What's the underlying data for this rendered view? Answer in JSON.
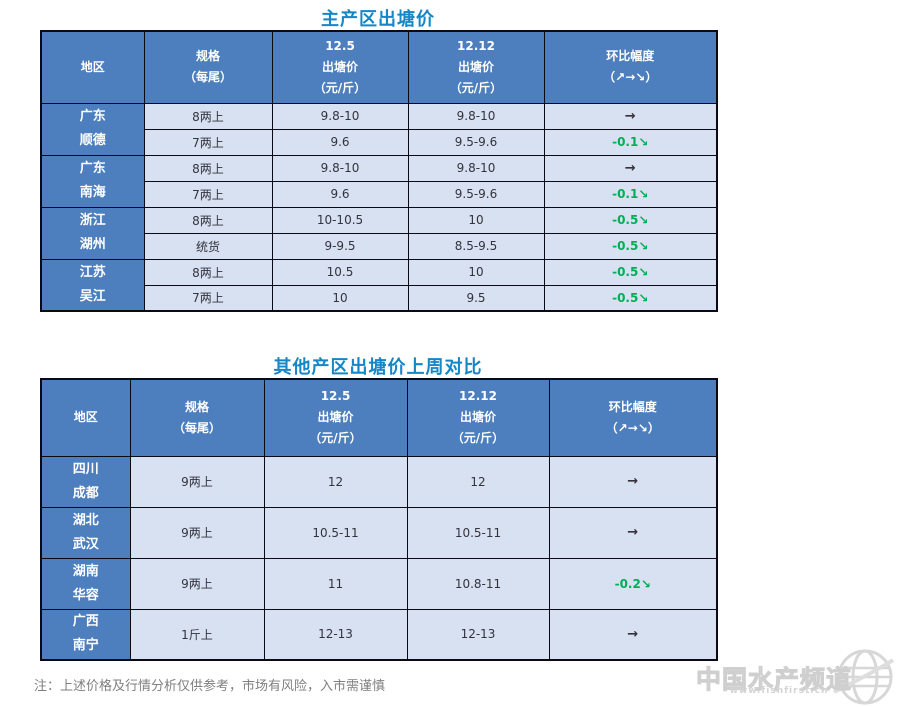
{
  "colors": {
    "header_bg": "#4d7ebd",
    "row_bg": "#d7e1f1",
    "title_color": "#1587c6",
    "down_color": "#00ae56",
    "flat_color": "#37303a",
    "note_color": "#7f7f7f",
    "watermark_color": "#d9d9d9"
  },
  "note": "注：上述价格及行情分析仅供参考，市场有风险，入市需谨慎",
  "watermark": {
    "brand": "中国水产频道",
    "url": "www.fishfirst.cn",
    "globe_icon": "globe-icon"
  },
  "tables": [
    {
      "title": "主产区出塘价",
      "columns": [
        {
          "key": "region",
          "lines": [
            "地区"
          ]
        },
        {
          "key": "spec",
          "lines": [
            "规格",
            "（每尾）"
          ]
        },
        {
          "key": "p1",
          "lines": [
            "12.5",
            "出塘价",
            "（元/斤）"
          ]
        },
        {
          "key": "p2",
          "lines": [
            "12.12",
            "出塘价",
            "（元/斤）"
          ]
        },
        {
          "key": "chg",
          "lines": [
            "环比幅度",
            "（↗→↘）"
          ]
        }
      ],
      "groups": [
        {
          "region": [
            "广东",
            "顺德"
          ],
          "rows": [
            {
              "spec": "8两上",
              "p1": "9.8-10",
              "p2": "9.8-10",
              "chg": "→",
              "trend": "flat"
            },
            {
              "spec": "7两上",
              "p1": "9.6",
              "p2": "9.5-9.6",
              "chg": "-0.1↘",
              "trend": "down"
            }
          ]
        },
        {
          "region": [
            "广东",
            "南海"
          ],
          "rows": [
            {
              "spec": "8两上",
              "p1": "9.8-10",
              "p2": "9.8-10",
              "chg": "→",
              "trend": "flat"
            },
            {
              "spec": "7两上",
              "p1": "9.6",
              "p2": "9.5-9.6",
              "chg": "-0.1↘",
              "trend": "down"
            }
          ]
        },
        {
          "region": [
            "浙江",
            "湖州"
          ],
          "rows": [
            {
              "spec": "8两上",
              "p1": "10-10.5",
              "p2": "10",
              "chg": "-0.5↘",
              "trend": "down"
            },
            {
              "spec": "统货",
              "p1": "9-9.5",
              "p2": "8.5-9.5",
              "chg": "-0.5↘",
              "trend": "down"
            }
          ]
        },
        {
          "region": [
            "江苏",
            "吴江"
          ],
          "rows": [
            {
              "spec": "8两上",
              "p1": "10.5",
              "p2": "10",
              "chg": "-0.5↘",
              "trend": "down"
            },
            {
              "spec": "7两上",
              "p1": "10",
              "p2": "9.5",
              "chg": "-0.5↘",
              "trend": "down"
            }
          ]
        }
      ]
    },
    {
      "title": "其他产区出塘价上周对比",
      "columns": [
        {
          "key": "region",
          "lines": [
            "地区"
          ]
        },
        {
          "key": "spec",
          "lines": [
            "规格",
            "（每尾）"
          ]
        },
        {
          "key": "p1",
          "lines": [
            "12.5",
            "出塘价",
            "（元/斤）"
          ]
        },
        {
          "key": "p2",
          "lines": [
            "12.12",
            "出塘价",
            "（元/斤）"
          ]
        },
        {
          "key": "chg",
          "lines": [
            "环比幅度",
            "（↗→↘）"
          ]
        }
      ],
      "groups": [
        {
          "region": [
            "四川",
            "成都"
          ],
          "rows": [
            {
              "spec": "9两上",
              "p1": "12",
              "p2": "12",
              "chg": "→",
              "trend": "flat"
            }
          ]
        },
        {
          "region": [
            "湖北",
            "武汉"
          ],
          "rows": [
            {
              "spec": "9两上",
              "p1": "10.5-11",
              "p2": "10.5-11",
              "chg": "→",
              "trend": "flat"
            }
          ]
        },
        {
          "region": [
            "湖南",
            "华容"
          ],
          "rows": [
            {
              "spec": "9两上",
              "p1": "11",
              "p2": "10.8-11",
              "chg": "-0.2↘",
              "trend": "down"
            }
          ]
        },
        {
          "region": [
            "广西",
            "南宁"
          ],
          "rows": [
            {
              "spec": "1斤上",
              "p1": "12-13",
              "p2": "12-13",
              "chg": "→",
              "trend": "flat"
            }
          ]
        }
      ]
    }
  ]
}
